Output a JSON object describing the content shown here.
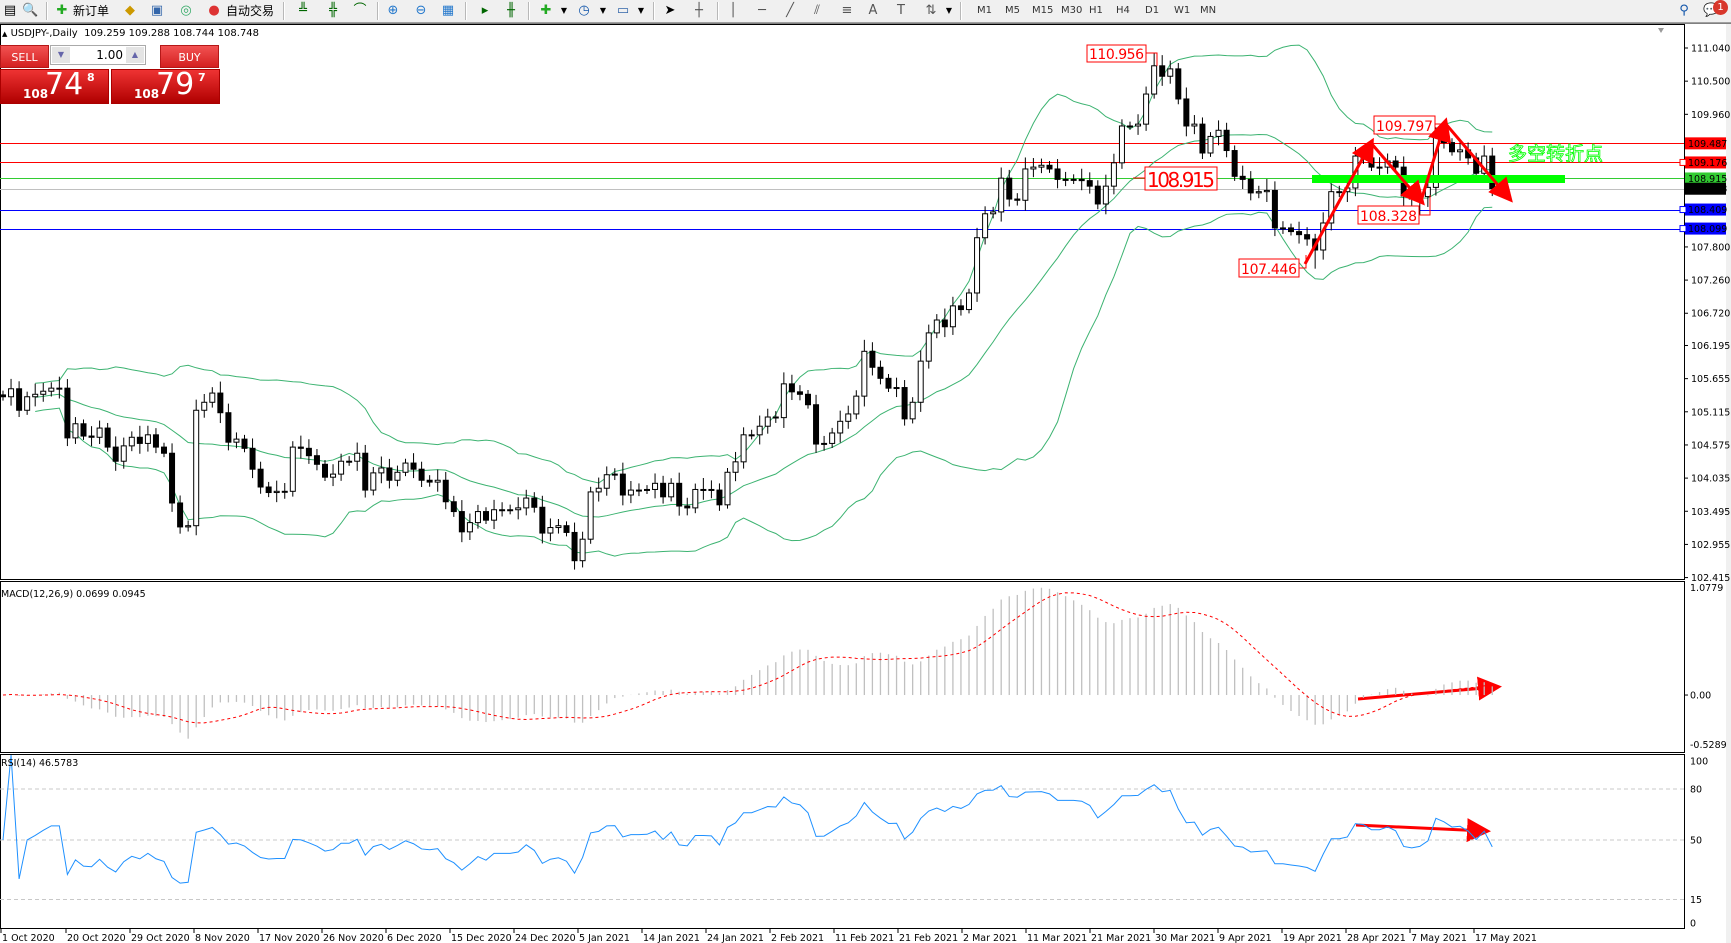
{
  "toolbar": {
    "new_order": "新订单",
    "auto_trading": "自动交易",
    "timeframes": [
      "M1",
      "M5",
      "M15",
      "M30",
      "H1",
      "H4",
      "D1",
      "W1",
      "MN"
    ],
    "notification_count": "1",
    "icons": [
      "market-watch",
      "data-window",
      "new-order",
      "meta-editor",
      "history",
      "signals",
      "auto-trading",
      "bar-chart",
      "candlestick",
      "line-chart",
      "zoom-in",
      "zoom-out",
      "tile-windows",
      "auto-scroll",
      "chart-shift",
      "indicators",
      "periods",
      "templates",
      "cursor",
      "crosshair",
      "vertical-line",
      "horizontal-line",
      "trendline",
      "equidistant-channel",
      "fibonacci",
      "text",
      "text-label",
      "arrows",
      "search",
      "chat"
    ]
  },
  "chart": {
    "symbol_title": "USDJPY-,Daily",
    "ohlc_readout": "109.259 109.288 108.744 108.748",
    "overlay_text": "多空转折点",
    "overlay_color": "#00ff00"
  },
  "trade_panel": {
    "sell_label": "SELL",
    "buy_label": "BUY",
    "lot": "1.00",
    "sell_price": {
      "big": "108",
      "main": "74",
      "sup": "8"
    },
    "buy_price": {
      "big": "108",
      "main": "79",
      "sup": "7"
    }
  },
  "chart_data": {
    "type": "candlestick",
    "symbol": "USDJPY-",
    "timeframe": "Daily",
    "closes": [
      105.36,
      105.49,
      105.14,
      105.36,
      105.4,
      105.45,
      105.5,
      105.5,
      104.69,
      104.92,
      104.72,
      104.7,
      104.85,
      104.54,
      104.31,
      104.56,
      104.7,
      104.6,
      104.74,
      104.54,
      104.44,
      103.63,
      103.24,
      103.26,
      105.14,
      105.27,
      105.42,
      105.1,
      104.62,
      104.67,
      104.52,
      104.18,
      103.89,
      103.8,
      103.82,
      103.82,
      104.54,
      104.52,
      104.4,
      104.26,
      104.05,
      104.1,
      104.31,
      104.31,
      104.44,
      103.84,
      104.12,
      104.2,
      104.0,
      104.13,
      104.28,
      104.18,
      104.0,
      103.97,
      104.0,
      103.65,
      103.49,
      103.16,
      103.31,
      103.49,
      103.35,
      103.52,
      103.52,
      103.52,
      103.55,
      103.71,
      103.56,
      103.14,
      103.23,
      103.26,
      103.15,
      102.69,
      103.04,
      103.81,
      103.87,
      104.09,
      104.1,
      103.76,
      103.84,
      103.84,
      103.85,
      103.95,
      103.73,
      103.95,
      103.58,
      103.55,
      103.85,
      103.85,
      103.84,
      103.6,
      104.13,
      104.3,
      104.74,
      104.74,
      104.88,
      105.03,
      105.02,
      105.57,
      105.44,
      105.4,
      105.23,
      104.59,
      104.6,
      104.77,
      104.96,
      105.08,
      105.37,
      106.1,
      105.84,
      105.66,
      105.5,
      105.51,
      105.0,
      105.27,
      105.94,
      106.4,
      106.61,
      106.5,
      106.84,
      106.78,
      107.05,
      107.95,
      108.34,
      108.37,
      108.92,
      108.58,
      108.56,
      109.07,
      109.1,
      109.13,
      109.07,
      108.9,
      108.9,
      108.9,
      108.88,
      108.79,
      108.5,
      108.79,
      109.17,
      109.77,
      109.77,
      109.8,
      110.29,
      110.75,
      110.58,
      110.7,
      110.21,
      109.77,
      109.8,
      109.33,
      109.6,
      109.7,
      109.37,
      108.95,
      108.9,
      108.68,
      108.7,
      108.72,
      108.11,
      108.11,
      108.05,
      108.0,
      107.93,
      107.75,
      108.19,
      108.7,
      108.7,
      108.76,
      109.28,
      109.25,
      109.1,
      109.1,
      109.2,
      109.1,
      108.63,
      108.58,
      108.62,
      108.77,
      109.6,
      109.5,
      109.35,
      109.38,
      109.25,
      109.0,
      109.28,
      108.75
    ],
    "price_axis": {
      "ylim": [
        102.415,
        111.04
      ],
      "ticks": [
        "111.040",
        "110.500",
        "109.960",
        "107.800",
        "107.260",
        "106.720",
        "106.195",
        "105.655",
        "105.115",
        "104.575",
        "104.035",
        "103.495",
        "102.955",
        "102.415"
      ]
    },
    "x_ticks": [
      "1 Oct 2020",
      "20 Oct 2020",
      "29 Oct 2020",
      "8 Nov 2020",
      "17 Nov 2020",
      "26 Nov 2020",
      "6 Dec 2020",
      "15 Dec 2020",
      "24 Dec 2020",
      "5 Jan 2021",
      "14 Jan 2021",
      "24 Jan 2021",
      "2 Feb 2021",
      "11 Feb 2021",
      "21 Feb 2021",
      "2 Mar 2021",
      "11 Mar 2021",
      "21 Mar 2021",
      "30 Mar 2021",
      "9 Apr 2021",
      "19 Apr 2021",
      "28 Apr 2021",
      "7 May 2021",
      "17 May 2021"
    ],
    "overlays": {
      "bollinger_bands": {
        "period": 20,
        "deviation": 2,
        "color": "#3cb371"
      }
    },
    "levels": [
      {
        "price": 109.487,
        "label": "109.487",
        "color": "#ff0000",
        "text_color": "#ffffff"
      },
      {
        "price": 109.176,
        "label": "109.176",
        "color": "#ff0000",
        "text_color": "#ffffff"
      },
      {
        "price": 108.915,
        "label": "108.915",
        "color": "#32cd32",
        "text_color": "#ffffff"
      },
      {
        "price": 108.748,
        "label": "108.748",
        "color": "#000000",
        "line_color": "#c0c0c0",
        "text_color": "#ffffff"
      },
      {
        "price": 108.409,
        "label": "108.409",
        "color": "#0000ff",
        "text_color": "#ffffff"
      },
      {
        "price": 108.099,
        "label": "108.099",
        "color": "#0000ff",
        "text_color": "#ffffff"
      }
    ],
    "price_labels": [
      {
        "text": "110.956",
        "bar": 143,
        "kind": "high"
      },
      {
        "text": "108.915",
        "bar": 140,
        "kind": "level"
      },
      {
        "text": "107.446",
        "bar": 163,
        "kind": "low"
      },
      {
        "text": "108.328",
        "bar": 176,
        "kind": "low"
      },
      {
        "text": "109.797",
        "bar": 179,
        "kind": "high"
      }
    ],
    "macd": {
      "header": "MACD(12,26,9) 0.0699 0.0945",
      "ylim": [
        -0.5289,
        1.0779
      ],
      "ticks": [
        "1.0779",
        "0.00",
        "-0.5289"
      ],
      "hist_color": "#c0c0c0",
      "signal_color": "#ff0000"
    },
    "rsi": {
      "header": "RSI(14) 46.5783",
      "ylim": [
        0,
        100
      ],
      "ticks": [
        "100",
        "80",
        "50",
        "15",
        "0"
      ],
      "levels": [
        80,
        50,
        15
      ],
      "color": "#1e90ff"
    }
  }
}
